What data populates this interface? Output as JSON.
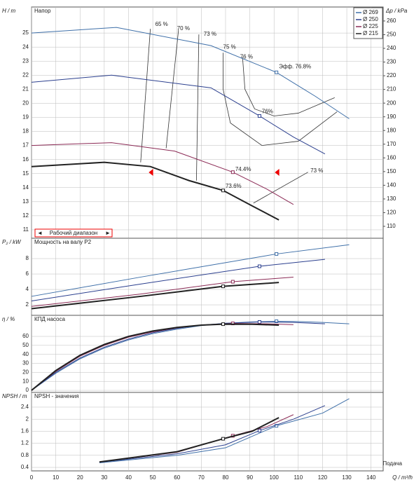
{
  "chart_data": [
    {
      "type": "line",
      "title": "Напор",
      "ylabel": "H / m",
      "y2label": "Δp / kPa",
      "ylim": [
        10.4,
        26.85
      ],
      "yticks": [
        11,
        12,
        13,
        14,
        15,
        16,
        17,
        18,
        19,
        20,
        21,
        22,
        23,
        24,
        25
      ],
      "y2lim": [
        101.3,
        270.2
      ],
      "y2ticks": [
        110,
        120,
        130,
        140,
        150,
        160,
        170,
        180,
        190,
        200,
        210,
        220,
        230,
        240,
        250,
        260
      ],
      "grid": true,
      "legend": "top-right",
      "series": [
        {
          "name": "Ø 269",
          "color": "#3e6fa8",
          "width": 1,
          "x": [
            0,
            35,
            74,
            101,
            117,
            131
          ],
          "values": [
            25.0,
            25.4,
            24.1,
            22.2,
            20.5,
            18.9
          ],
          "point": {
            "x": 101,
            "value": 22.2
          }
        },
        {
          "name": "Ø 250",
          "color": "#2b3f8e",
          "width": 1,
          "x": [
            0,
            33,
            74,
            94,
            108,
            121
          ],
          "values": [
            21.5,
            22.0,
            21.1,
            19.1,
            17.6,
            16.4
          ],
          "point": {
            "x": 94,
            "value": 19.1
          }
        },
        {
          "name": "Ø 225",
          "color": "#8b2a55",
          "width": 1,
          "x": [
            0,
            33,
            59,
            83,
            97,
            108
          ],
          "values": [
            17.0,
            17.2,
            16.6,
            15.1,
            13.9,
            12.8
          ],
          "point": {
            "x": 83,
            "value": 15.1
          }
        },
        {
          "name": "Ø 215",
          "color": "#222222",
          "width": 2,
          "x": [
            0,
            30,
            49,
            65,
            79,
            91,
            102
          ],
          "values": [
            15.5,
            15.8,
            15.5,
            14.5,
            13.8,
            12.7,
            11.7
          ],
          "point": {
            "x": 79,
            "value": 13.8
          }
        }
      ],
      "contours": [
        {
          "label": "65 %",
          "x": [
            45,
            49
          ],
          "values": [
            15.8,
            25.3
          ],
          "label_x": 51,
          "label_y": 25.6
        },
        {
          "label": "70 %",
          "x": [
            55.5,
            60.6
          ],
          "values": [
            16.8,
            25.2
          ],
          "label_x": 60,
          "label_y": 25.3
        },
        {
          "label": "73 %",
          "x": [
            68,
            69
          ],
          "values": [
            14.5,
            24.9
          ],
          "label_x": 71,
          "label_y": 24.9
        },
        {
          "label": "75 %",
          "x": [
            79,
            79,
            82,
            95,
            110,
            126
          ],
          "values": [
            23.6,
            21,
            18.6,
            17.0,
            17.3,
            19.4
          ],
          "label_x": 79,
          "label_y": 24.0
        },
        {
          "label": "76 %",
          "x": [
            87,
            88,
            92,
            100,
            110,
            125
          ],
          "values": [
            23.3,
            21,
            19.6,
            19.1,
            19.3,
            20.4
          ],
          "label_x": 86,
          "label_y": 23.3
        },
        {
          "label": "73 %",
          "x": [
            91.5,
            114
          ],
          "values": [
            12.9,
            15.1
          ],
          "label_x": 115,
          "label_y": 15.2
        }
      ],
      "annotations": [
        {
          "text": "Эфф.  76.8%",
          "x": 102,
          "y": 22.6,
          "color": "#3e6fa8"
        },
        {
          "text": "76%",
          "x": 95,
          "y": 19.4,
          "color": "#2b3f8e"
        },
        {
          "text": "74.4%",
          "x": 84,
          "y": 15.3,
          "color": "#8b2a55"
        },
        {
          "text": "73.6%",
          "x": 80,
          "y": 14.1,
          "color": "#222222"
        }
      ],
      "operating_range": {
        "label": "Рабочий диапазон",
        "x": [
          50,
          102
        ]
      }
    },
    {
      "type": "line",
      "title": "Мощность на валу P2",
      "ylabel": "P₂ / kW",
      "ylim": [
        0.64,
        10.64
      ],
      "yticks": [
        2,
        4,
        6,
        8
      ],
      "grid": true,
      "series": [
        {
          "x": [
            0,
            45,
            101,
            131
          ],
          "values": [
            3.1,
            5.6,
            8.6,
            9.8
          ],
          "point": {
            "x": 101,
            "value": 8.6
          }
        },
        {
          "x": [
            0,
            45,
            94,
            121
          ],
          "values": [
            2.5,
            4.7,
            7.0,
            7.9
          ],
          "point": {
            "x": 94,
            "value": 7.0
          }
        },
        {
          "x": [
            0,
            45,
            83,
            108
          ],
          "values": [
            1.8,
            3.4,
            5.0,
            5.6
          ],
          "point": {
            "x": 83,
            "value": 5.0
          }
        },
        {
          "x": [
            0,
            45,
            79,
            102
          ],
          "values": [
            1.5,
            3.1,
            4.4,
            4.9
          ],
          "point": {
            "x": 79,
            "value": 4.4
          }
        }
      ]
    },
    {
      "type": "line",
      "title": "КПД насоса",
      "ylabel": "η / %",
      "ylim": [
        -2.3,
        83.4
      ],
      "yticks": [
        0,
        10,
        20,
        30,
        40,
        50,
        60
      ],
      "grid": true,
      "series": [
        {
          "x": [
            0,
            10,
            20,
            30,
            40,
            50,
            60,
            70,
            80,
            90,
            101,
            110,
            120,
            131
          ],
          "values": [
            0,
            19,
            35,
            47,
            56,
            63,
            68,
            72,
            74.5,
            76,
            76.8,
            76.5,
            75.5,
            74
          ],
          "point": {
            "x": 101,
            "value": 76.8
          }
        },
        {
          "x": [
            0,
            10,
            20,
            30,
            40,
            50,
            60,
            70,
            80,
            94,
            108,
            121
          ],
          "values": [
            0,
            20,
            36,
            48,
            57,
            64,
            69,
            72.5,
            74.5,
            76,
            75.5,
            74
          ],
          "point": {
            "x": 94,
            "value": 76
          }
        },
        {
          "x": [
            0,
            10,
            20,
            30,
            40,
            50,
            60,
            70,
            83,
            97,
            108
          ],
          "values": [
            0,
            21,
            38,
            50,
            59,
            65,
            69.5,
            72.5,
            74.4,
            74,
            73
          ],
          "point": {
            "x": 83,
            "value": 74.4
          }
        },
        {
          "x": [
            0,
            10,
            20,
            30,
            40,
            50,
            60,
            70,
            79,
            91,
            102
          ],
          "values": [
            0,
            22,
            39,
            51,
            60,
            66,
            70,
            72.5,
            73.6,
            73.5,
            72.5
          ],
          "point": {
            "x": 79,
            "value": 73.6
          }
        }
      ]
    },
    {
      "type": "line",
      "title": "NPSH - значения",
      "ylabel": "NPSH / m",
      "ylim": [
        0.284,
        2.888
      ],
      "yticks": [
        0.4,
        0.8,
        1.2,
        1.6,
        2,
        2.4
      ],
      "grid": true,
      "xlim": [
        0,
        145
      ],
      "xticks": [
        0,
        10,
        20,
        30,
        40,
        50,
        60,
        70,
        80,
        90,
        100,
        110,
        120,
        130,
        140
      ],
      "xlabel": "Q / m³/h",
      "xcaption": "Подача",
      "series": [
        {
          "x": [
            28,
            60,
            80,
            101,
            120,
            131
          ],
          "values": [
            0.55,
            0.8,
            1.05,
            1.78,
            2.2,
            2.68
          ],
          "point": {
            "x": 101,
            "value": 1.78
          }
        },
        {
          "x": [
            28,
            60,
            80,
            94,
            108,
            121
          ],
          "values": [
            0.57,
            0.85,
            1.15,
            1.62,
            2.0,
            2.45
          ],
          "point": {
            "x": 94,
            "value": 1.62
          }
        },
        {
          "x": [
            28,
            60,
            83,
            97,
            108
          ],
          "values": [
            0.58,
            0.9,
            1.45,
            1.75,
            2.15
          ],
          "point": {
            "x": 83,
            "value": 1.45
          }
        },
        {
          "x": [
            28,
            60,
            79,
            91,
            102
          ],
          "values": [
            0.58,
            0.92,
            1.35,
            1.6,
            2.05
          ],
          "point": {
            "x": 79,
            "value": 1.35
          }
        }
      ]
    }
  ]
}
